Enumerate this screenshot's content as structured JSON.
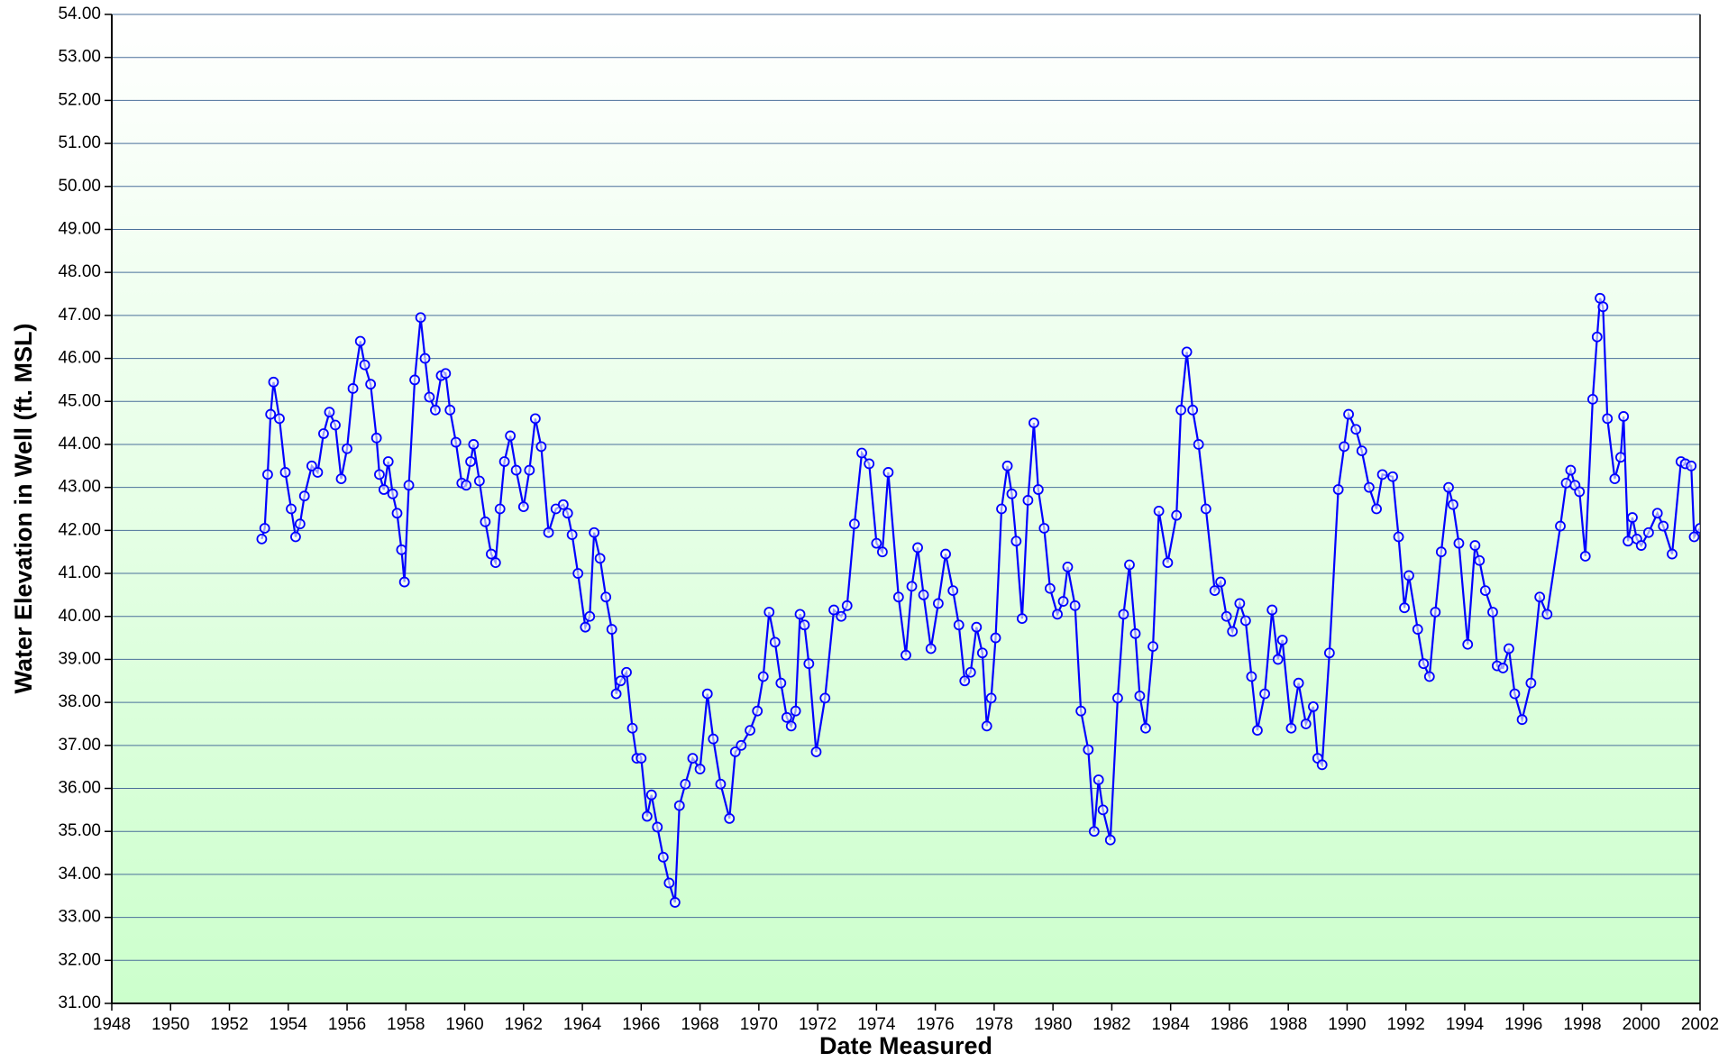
{
  "chart_data": {
    "type": "line",
    "xlabel": "Date Measured",
    "ylabel": "Water Elevation in Well (ft. MSL)",
    "xlim": [
      1948,
      2002
    ],
    "xticks": [
      1948,
      1950,
      1952,
      1954,
      1956,
      1958,
      1960,
      1962,
      1964,
      1966,
      1968,
      1970,
      1972,
      1974,
      1976,
      1978,
      1980,
      1982,
      1984,
      1986,
      1988,
      1990,
      1992,
      1994,
      1996,
      1998,
      2000,
      2002
    ],
    "ylim": [
      31,
      54
    ],
    "yticks": [
      {
        "value": 31,
        "label": "31.00"
      },
      {
        "value": 32,
        "label": "32.00"
      },
      {
        "value": 33,
        "label": "33.00"
      },
      {
        "value": 34,
        "label": "34.00"
      },
      {
        "value": 35,
        "label": "35.00"
      },
      {
        "value": 36,
        "label": "36.00"
      },
      {
        "value": 37,
        "label": "37.00"
      },
      {
        "value": 38,
        "label": "38.00"
      },
      {
        "value": 39,
        "label": "39.00"
      },
      {
        "value": 40,
        "label": "40.00"
      },
      {
        "value": 41,
        "label": "41.00"
      },
      {
        "value": 42,
        "label": "42.00"
      },
      {
        "value": 43,
        "label": "43.00"
      },
      {
        "value": 44,
        "label": "44.00"
      },
      {
        "value": 45,
        "label": "45.00"
      },
      {
        "value": 46,
        "label": "46.00"
      },
      {
        "value": 47,
        "label": "47.00"
      },
      {
        "value": 48,
        "label": "48.00"
      },
      {
        "value": 49,
        "label": "49.00"
      },
      {
        "value": 50,
        "label": "50.00"
      },
      {
        "value": 51,
        "label": "51.00"
      },
      {
        "value": 52,
        "label": "52.00"
      },
      {
        "value": 53,
        "label": "53.00"
      },
      {
        "value": 54,
        "label": "54.00"
      }
    ],
    "grid": true,
    "x": [
      1953.1,
      1953.2,
      1953.3,
      1953.4,
      1953.5,
      1953.7,
      1953.9,
      1954.1,
      1954.25,
      1954.4,
      1954.55,
      1954.8,
      1955.0,
      1955.2,
      1955.4,
      1955.6,
      1955.8,
      1956.0,
      1956.2,
      1956.45,
      1956.6,
      1956.8,
      1957.0,
      1957.1,
      1957.25,
      1957.4,
      1957.55,
      1957.7,
      1957.85,
      1957.95,
      1958.1,
      1958.3,
      1958.5,
      1958.65,
      1958.8,
      1959.0,
      1959.2,
      1959.35,
      1959.5,
      1959.7,
      1959.9,
      1960.05,
      1960.2,
      1960.3,
      1960.5,
      1960.7,
      1960.9,
      1961.05,
      1961.2,
      1961.35,
      1961.55,
      1961.75,
      1962.0,
      1962.2,
      1962.4,
      1962.6,
      1962.85,
      1963.1,
      1963.35,
      1963.5,
      1963.65,
      1963.85,
      1964.1,
      1964.25,
      1964.4,
      1964.6,
      1964.8,
      1965.0,
      1965.15,
      1965.3,
      1965.5,
      1965.7,
      1965.85,
      1966.0,
      1966.2,
      1966.35,
      1966.55,
      1966.75,
      1966.95,
      1967.15,
      1967.3,
      1967.5,
      1967.75,
      1968.0,
      1968.25,
      1968.45,
      1968.7,
      1969.0,
      1969.2,
      1969.4,
      1969.7,
      1969.95,
      1970.15,
      1970.35,
      1970.55,
      1970.75,
      1970.95,
      1971.1,
      1971.25,
      1971.4,
      1971.55,
      1971.7,
      1971.95,
      1972.25,
      1972.55,
      1972.8,
      1973.0,
      1973.25,
      1973.5,
      1973.75,
      1974.0,
      1974.2,
      1974.4,
      1974.75,
      1975.0,
      1975.2,
      1975.4,
      1975.6,
      1975.85,
      1976.1,
      1976.35,
      1976.6,
      1976.8,
      1977.0,
      1977.2,
      1977.4,
      1977.6,
      1977.75,
      1977.9,
      1978.05,
      1978.25,
      1978.45,
      1978.6,
      1978.75,
      1978.95,
      1979.15,
      1979.35,
      1979.5,
      1979.7,
      1979.9,
      1980.15,
      1980.35,
      1980.5,
      1980.75,
      1980.95,
      1981.2,
      1981.4,
      1981.55,
      1981.7,
      1981.95,
      1982.2,
      1982.4,
      1982.6,
      1982.8,
      1982.95,
      1983.15,
      1983.4,
      1983.6,
      1983.9,
      1984.2,
      1984.35,
      1984.55,
      1984.75,
      1984.95,
      1985.2,
      1985.5,
      1985.7,
      1985.9,
      1986.1,
      1986.35,
      1986.55,
      1986.75,
      1986.95,
      1987.2,
      1987.45,
      1987.65,
      1987.8,
      1988.1,
      1988.35,
      1988.6,
      1988.85,
      1989.0,
      1989.15,
      1989.4,
      1989.7,
      1989.9,
      1990.05,
      1990.3,
      1990.5,
      1990.75,
      1991.0,
      1991.2,
      1991.55,
      1991.75,
      1991.95,
      1992.1,
      1992.4,
      1992.6,
      1992.8,
      1993.0,
      1993.2,
      1993.45,
      1993.6,
      1993.8,
      1994.1,
      1994.35,
      1994.5,
      1994.7,
      1994.95,
      1995.1,
      1995.3,
      1995.5,
      1995.7,
      1995.95,
      1996.25,
      1996.55,
      1996.8,
      1997.25,
      1997.45,
      1997.6,
      1997.75,
      1997.9,
      1998.1,
      1998.35,
      1998.5,
      1998.6,
      1998.7,
      1998.85,
      1999.1,
      1999.3,
      1999.4,
      1999.55,
      1999.7,
      1999.85,
      2000.0,
      2000.25,
      2000.55,
      2000.75,
      2001.05,
      2001.35,
      2001.5,
      2001.7,
      2001.8,
      2002.0
    ],
    "series": [
      {
        "name": "Water Elevation",
        "color": "#0000ff",
        "values": [
          41.8,
          42.05,
          43.3,
          44.7,
          45.45,
          44.6,
          43.35,
          42.5,
          41.85,
          42.15,
          42.8,
          43.5,
          43.35,
          44.25,
          44.75,
          44.45,
          43.2,
          43.9,
          45.3,
          46.4,
          45.85,
          45.4,
          44.15,
          43.3,
          42.95,
          43.6,
          42.85,
          42.4,
          41.55,
          40.8,
          43.05,
          45.5,
          46.95,
          46.0,
          45.1,
          44.8,
          45.6,
          45.65,
          44.8,
          44.05,
          43.1,
          43.05,
          43.6,
          44.0,
          43.15,
          42.2,
          41.45,
          41.25,
          42.5,
          43.6,
          44.2,
          43.4,
          42.55,
          43.4,
          44.6,
          43.95,
          41.95,
          42.5,
          42.6,
          42.4,
          41.9,
          41.0,
          39.75,
          40.0,
          41.95,
          41.35,
          40.45,
          39.7,
          38.2,
          38.5,
          38.7,
          37.4,
          36.7,
          36.7,
          35.35,
          35.85,
          35.1,
          34.4,
          33.8,
          33.35,
          35.6,
          36.1,
          36.7,
          36.45,
          38.2,
          37.15,
          36.1,
          35.3,
          36.85,
          37.0,
          37.35,
          37.8,
          38.6,
          40.1,
          39.4,
          38.45,
          37.65,
          37.45,
          37.8,
          40.05,
          39.8,
          38.9,
          36.85,
          38.1,
          40.15,
          40.0,
          40.25,
          42.15,
          43.8,
          43.55,
          41.7,
          41.5,
          43.35,
          40.45,
          39.1,
          40.7,
          41.6,
          40.5,
          39.25,
          40.3,
          41.45,
          40.6,
          39.8,
          38.5,
          38.7,
          39.75,
          39.15,
          37.45,
          38.1,
          39.5,
          42.5,
          43.5,
          42.85,
          41.75,
          39.95,
          42.7,
          44.5,
          42.95,
          42.05,
          40.65,
          40.05,
          40.35,
          41.15,
          40.25,
          37.8,
          36.9,
          35.0,
          36.2,
          35.5,
          34.8,
          38.1,
          40.05,
          41.2,
          39.6,
          38.15,
          37.4,
          39.3,
          42.45,
          41.25,
          42.35,
          44.8,
          46.15,
          44.8,
          44.0,
          42.5,
          40.6,
          40.8,
          40.0,
          39.65,
          40.3,
          39.9,
          38.6,
          37.35,
          38.2,
          40.15,
          39.0,
          39.45,
          37.4,
          38.45,
          37.5,
          37.9,
          36.7,
          36.55,
          39.15,
          42.95,
          43.95,
          44.7,
          44.35,
          43.85,
          43.0,
          42.5,
          43.3,
          43.25,
          41.85,
          40.2,
          40.95,
          39.7,
          38.9,
          38.6,
          40.1,
          41.5,
          43.0,
          42.6,
          41.7,
          39.35,
          41.65,
          41.3,
          40.6,
          40.1,
          38.85,
          38.8,
          39.25,
          38.2,
          37.6,
          38.45,
          40.45,
          40.05,
          42.1,
          43.1,
          43.4,
          43.05,
          42.9,
          41.4,
          45.05,
          46.5,
          47.4,
          47.2,
          44.6,
          43.2,
          43.7,
          44.65,
          41.75,
          42.3,
          41.8,
          41.65,
          41.95,
          42.4,
          42.1,
          41.45,
          43.6,
          43.55,
          43.5,
          41.85,
          42.05
        ]
      }
    ]
  }
}
